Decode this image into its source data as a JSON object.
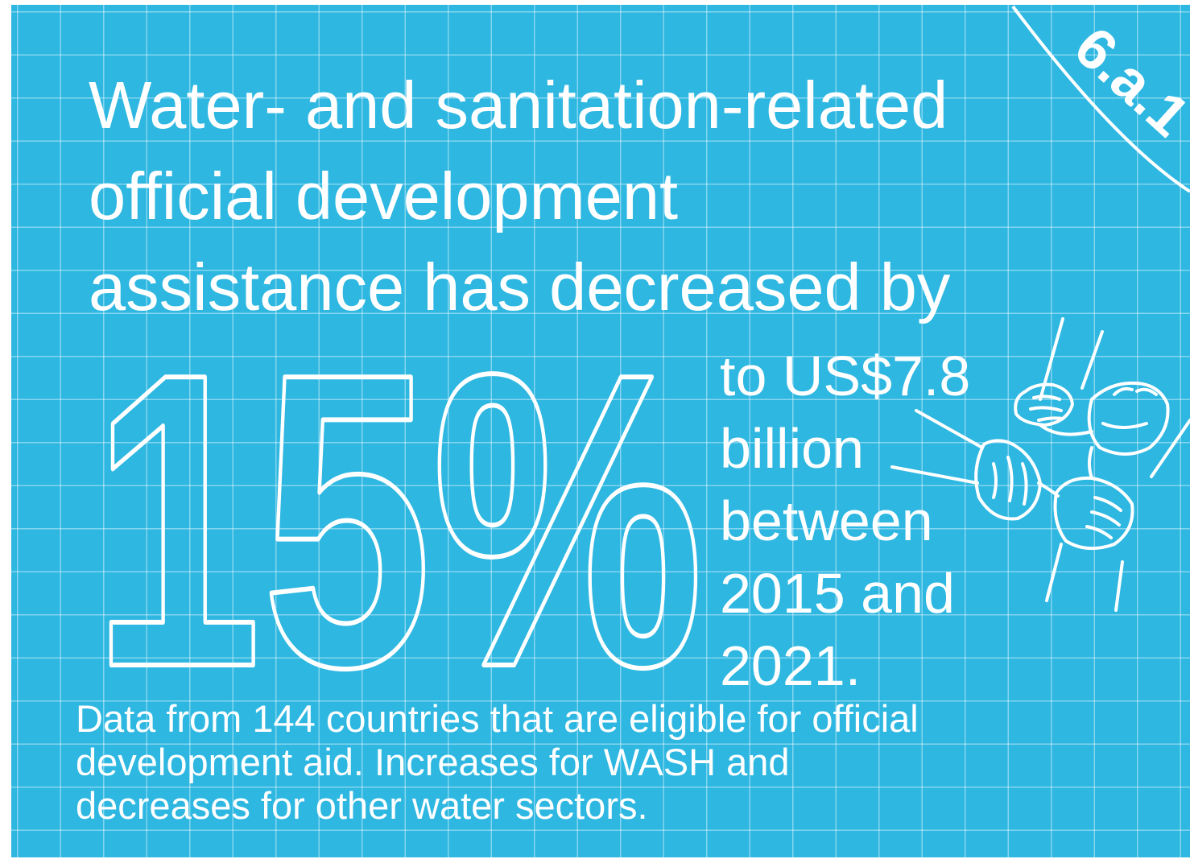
{
  "headline": {
    "line1": "Water- and sanitation-related",
    "line2": "official development",
    "line3": "assistance has decreased by"
  },
  "hero_figure": {
    "value": "15%"
  },
  "detail": {
    "line1": "to US$7.8",
    "line2": "billion",
    "line3": "between",
    "line4": "2015 and",
    "line5": "2021."
  },
  "footnote": {
    "line1": "Data from 144 countries that are eligible for official",
    "line2": "development aid. Increases for WASH and",
    "line3": "decreases for other water sectors."
  },
  "badge": {
    "label": "6.a.1"
  },
  "colors": {
    "background": "#2db7e1",
    "grid": "#ffffff",
    "text": "#ffffff"
  },
  "icons": {
    "illustration": "stacked-hands-icon"
  }
}
